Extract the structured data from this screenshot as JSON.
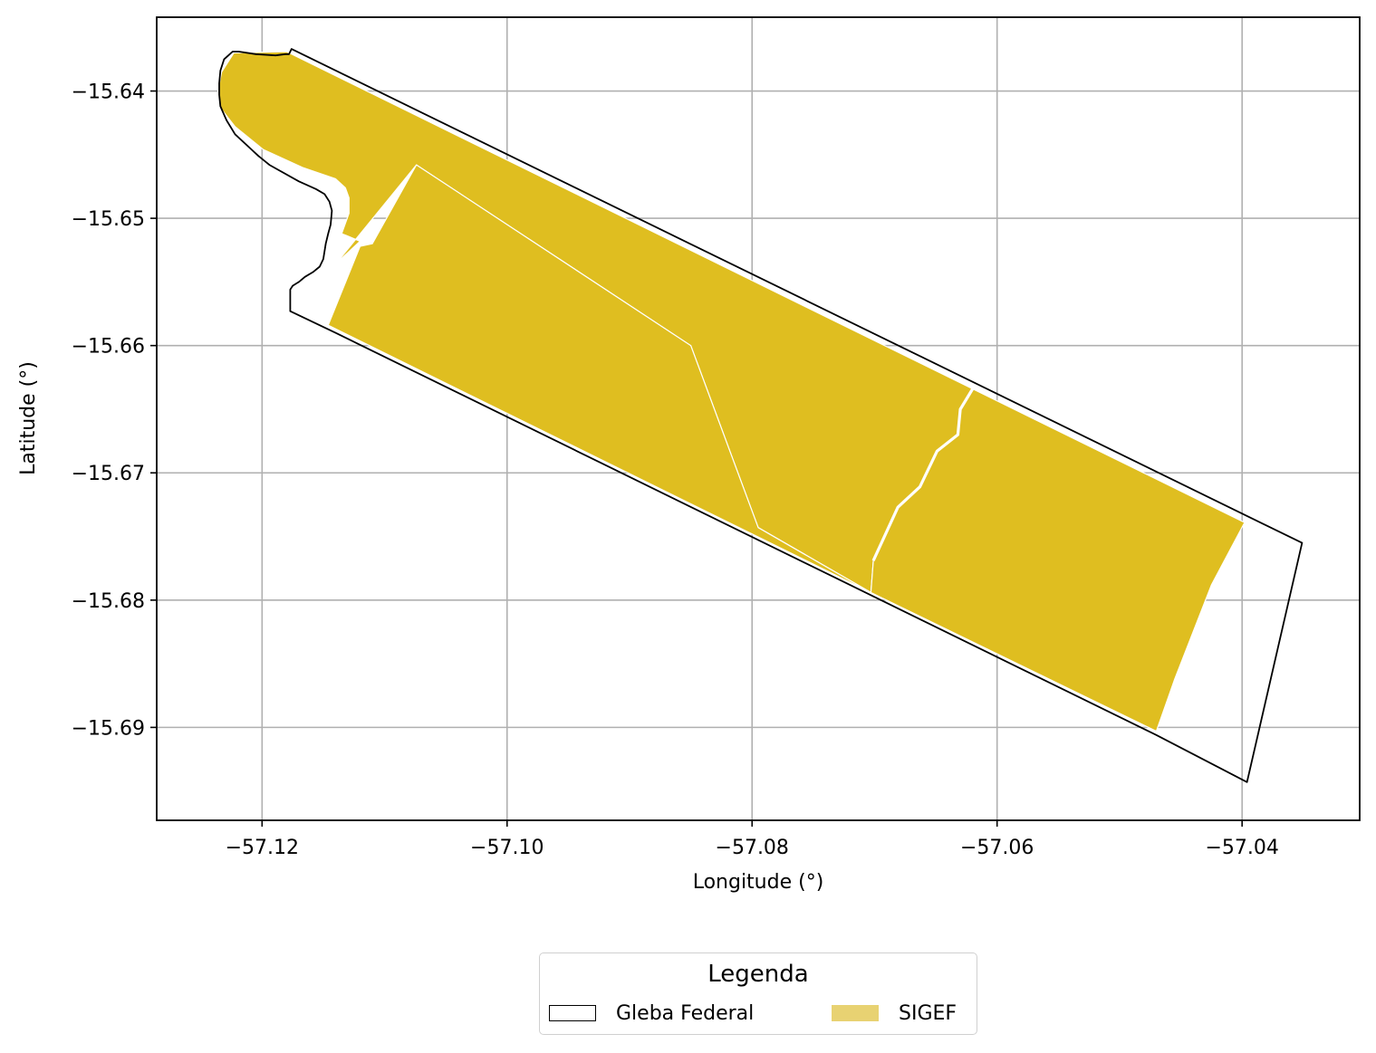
{
  "chart_data": {
    "type": "map",
    "xlabel": "Longitude (°)",
    "ylabel": "Latitude (°)",
    "xlim": [
      -57.1286,
      -57.0304
    ],
    "ylim": [
      -15.6973,
      -15.6342
    ],
    "xticks": [
      -57.12,
      -57.1,
      -57.08,
      -57.06,
      -57.04
    ],
    "xtick_labels": [
      "−57.12",
      "−57.10",
      "−57.08",
      "−57.06",
      "−57.04"
    ],
    "yticks": [
      -15.64,
      -15.65,
      -15.66,
      -15.67,
      -15.68,
      -15.69
    ],
    "ytick_labels": [
      "−15.64",
      "−15.65",
      "−15.66",
      "−15.67",
      "−15.68",
      "−15.69"
    ],
    "grid": true,
    "layers": [
      {
        "name": "SIGEF",
        "fill": "#dfbe20",
        "legend_fill": "#e8d272",
        "parcels": [
          [
            [
              -57.1235,
              -15.6412
            ],
            [
              -57.1236,
              -15.64
            ],
            [
              -57.1233,
              -15.6385
            ],
            [
              -57.1223,
              -15.637
            ],
            [
              -57.118,
              -15.6369
            ],
            [
              -57.062,
              -15.6634
            ],
            [
              -57.063,
              -15.665
            ],
            [
              -57.0632,
              -15.667
            ],
            [
              -57.0649,
              -15.6683
            ],
            [
              -57.0663,
              -15.6711
            ],
            [
              -57.0681,
              -15.6727
            ],
            [
              -57.0701,
              -15.6769
            ],
            [
              -57.0703,
              -15.6794
            ],
            [
              -57.0795,
              -15.6743
            ],
            [
              -57.085,
              -15.66
            ],
            [
              -57.1074,
              -15.6458
            ],
            [
              -57.114,
              -15.6536
            ],
            [
              -57.112,
              -15.6518
            ],
            [
              -57.1135,
              -15.6512
            ],
            [
              -57.1129,
              -15.6496
            ],
            [
              -57.1129,
              -15.6484
            ],
            [
              -57.1132,
              -15.6476
            ],
            [
              -57.114,
              -15.6469
            ],
            [
              -57.1167,
              -15.646
            ],
            [
              -57.1199,
              -15.6446
            ],
            [
              -57.1222,
              -15.6428
            ]
          ],
          [
            [
              -57.1074,
              -15.6458
            ],
            [
              -57.085,
              -15.66
            ],
            [
              -57.0795,
              -15.6743
            ],
            [
              -57.0703,
              -15.6794
            ],
            [
              -57.1146,
              -15.6584
            ],
            [
              -57.112,
              -15.6522
            ],
            [
              -57.111,
              -15.652
            ]
          ],
          [
            [
              -57.062,
              -15.6634
            ],
            [
              -57.0398,
              -15.6739
            ],
            [
              -57.0425,
              -15.6788
            ],
            [
              -57.0455,
              -15.6862
            ],
            [
              -57.047,
              -15.6903
            ],
            [
              -57.0703,
              -15.6794
            ],
            [
              -57.0701,
              -15.6769
            ],
            [
              -57.0681,
              -15.6727
            ],
            [
              -57.0663,
              -15.6711
            ],
            [
              -57.0649,
              -15.6683
            ],
            [
              -57.0632,
              -15.667
            ],
            [
              -57.063,
              -15.665
            ]
          ]
        ]
      },
      {
        "name": "Gleba Federal",
        "stroke": "#000000",
        "polygon": [
          [
            -57.1176,
            -15.6367
          ],
          [
            -57.1178,
            -15.6371
          ],
          [
            -57.1181,
            -15.6371
          ],
          [
            -57.1189,
            -15.6372
          ],
          [
            -57.1205,
            -15.6371
          ],
          [
            -57.1219,
            -15.6369
          ],
          [
            -57.1224,
            -15.6369
          ],
          [
            -57.1231,
            -15.6375
          ],
          [
            -57.1234,
            -15.6384
          ],
          [
            -57.1235,
            -15.6394
          ],
          [
            -57.1235,
            -15.6403
          ],
          [
            -57.1234,
            -15.6412
          ],
          [
            -57.1229,
            -15.6423
          ],
          [
            -57.1222,
            -15.6434
          ],
          [
            -57.1213,
            -15.6442
          ],
          [
            -57.1203,
            -15.6451
          ],
          [
            -57.1194,
            -15.6458
          ],
          [
            -57.117,
            -15.6471
          ],
          [
            -57.1156,
            -15.6477
          ],
          [
            -57.1149,
            -15.6481
          ],
          [
            -57.1145,
            -15.6487
          ],
          [
            -57.1143,
            -15.6494
          ],
          [
            -57.1144,
            -15.6505
          ],
          [
            -57.1146,
            -15.6512
          ],
          [
            -57.1148,
            -15.652
          ],
          [
            -57.115,
            -15.6532
          ],
          [
            -57.1153,
            -15.6538
          ],
          [
            -57.1158,
            -15.6542
          ],
          [
            -57.1165,
            -15.6546
          ],
          [
            -57.117,
            -15.655
          ],
          [
            -57.1175,
            -15.6553
          ],
          [
            -57.1177,
            -15.6556
          ],
          [
            -57.1177,
            -15.6562
          ],
          [
            -57.1177,
            -15.6573
          ],
          [
            -57.114,
            -15.659
          ],
          [
            -57.047,
            -15.6906
          ],
          [
            -57.0396,
            -15.6943
          ],
          [
            -57.0351,
            -15.6755
          ],
          [
            -57.1176,
            -15.6367
          ]
        ]
      }
    ]
  },
  "legend": {
    "title": "Legenda",
    "items": [
      {
        "label": "Gleba Federal",
        "swatch": "outline",
        "color": "#000000"
      },
      {
        "label": "SIGEF",
        "swatch": "fill",
        "color": "#e8d272"
      }
    ]
  }
}
